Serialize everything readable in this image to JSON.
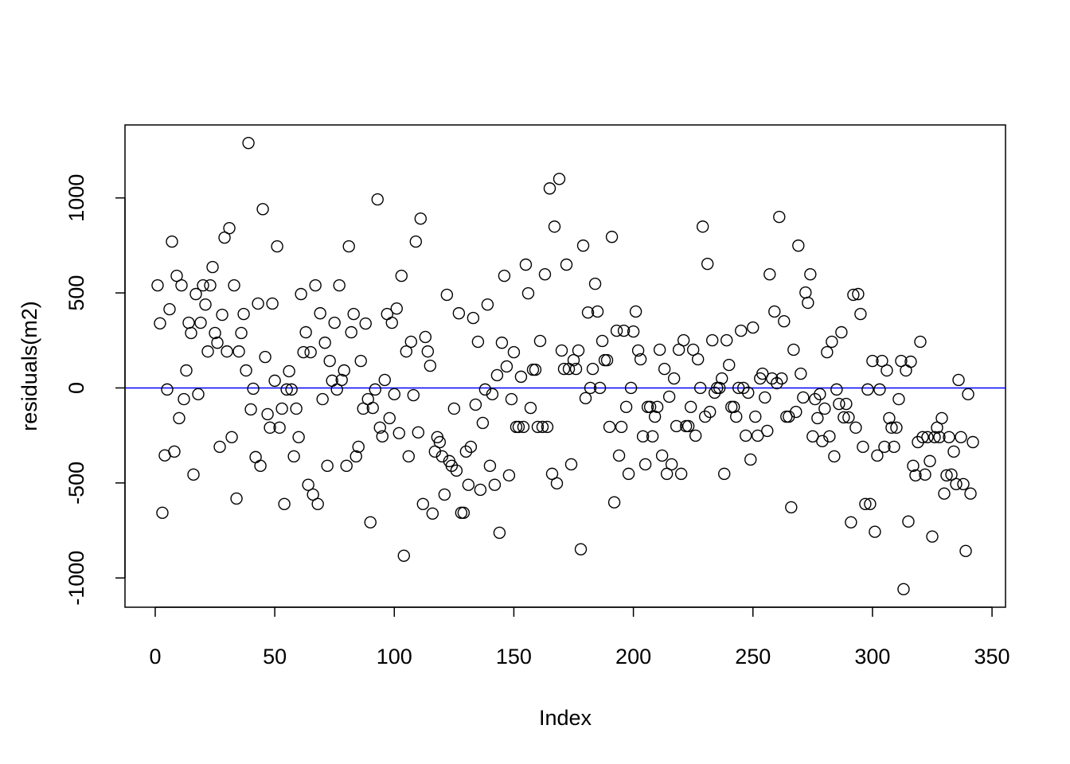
{
  "chart_data": {
    "type": "scatter",
    "xlabel": "Index",
    "ylabel": "residuals(m2)",
    "xlim": [
      -12.64,
      355.64
    ],
    "ylim": [
      -1154,
      1384
    ],
    "xticks": [
      0,
      50,
      100,
      150,
      200,
      250,
      300,
      350
    ],
    "yticks": [
      -1000,
      -500,
      0,
      500,
      1000
    ],
    "hline": {
      "value": 0,
      "color": "#0000ff"
    },
    "series": [
      {
        "color": "#000000",
        "x": [
          1,
          2,
          3,
          4,
          5,
          6,
          7,
          8,
          9,
          10,
          11,
          12,
          13,
          14,
          15,
          16,
          17,
          18,
          19,
          20,
          21,
          22,
          23,
          24,
          25,
          26,
          27,
          28,
          29,
          30,
          31,
          32,
          33,
          34,
          35,
          36,
          37,
          38,
          39,
          40,
          41,
          42,
          43,
          44,
          45,
          46,
          47,
          48,
          49,
          50,
          51,
          52,
          53,
          54,
          55,
          56,
          57,
          58,
          59,
          60,
          61,
          62,
          63,
          64,
          65,
          66,
          67,
          68,
          69,
          70,
          71,
          72,
          73,
          74,
          75,
          76,
          77,
          78,
          79,
          80,
          81,
          82,
          83,
          84,
          85,
          86,
          87,
          88,
          89,
          90,
          91,
          92,
          93,
          94,
          95,
          96,
          97,
          98,
          99,
          100,
          101,
          102,
          103,
          104,
          105,
          106,
          107,
          108,
          109,
          110,
          111,
          112,
          113,
          114,
          115,
          116,
          117,
          118,
          119,
          120,
          121,
          122,
          123,
          124,
          125,
          126,
          127,
          128,
          129,
          130,
          131,
          132,
          133,
          134,
          135,
          136,
          137,
          138,
          139,
          140,
          141,
          142,
          143,
          144,
          145,
          146,
          147,
          148,
          149,
          150,
          151,
          152,
          153,
          154,
          155,
          156,
          157,
          158,
          159,
          160,
          161,
          162,
          163,
          164,
          165,
          166,
          167,
          168,
          169,
          170,
          171,
          172,
          173,
          174,
          175,
          176,
          177,
          178,
          179,
          180,
          181,
          182,
          183,
          184,
          185,
          186,
          187,
          188,
          189,
          190,
          191,
          192,
          193,
          194,
          195,
          196,
          197,
          198,
          199,
          200,
          201,
          202,
          203,
          204,
          205,
          206,
          207,
          208,
          209,
          210,
          211,
          212,
          213,
          214,
          215,
          216,
          217,
          218,
          219,
          220,
          221,
          222,
          223,
          224,
          225,
          226,
          227,
          228,
          229,
          230,
          231,
          232,
          233,
          234,
          235,
          236,
          237,
          238,
          239,
          240,
          241,
          242,
          243,
          244,
          245,
          246,
          247,
          248,
          249,
          250,
          251,
          252,
          253,
          254,
          255,
          256,
          257,
          258,
          259,
          260,
          261,
          262,
          263,
          264,
          265,
          266,
          267,
          268,
          269,
          270,
          271,
          272,
          273,
          274,
          275,
          276,
          277,
          278,
          279,
          280,
          281,
          282,
          283,
          284,
          285,
          286,
          287,
          288,
          289,
          290,
          291,
          292,
          293,
          294,
          295,
          296,
          297,
          298,
          299,
          300,
          301,
          302,
          303,
          304,
          305,
          306,
          307,
          308,
          309,
          310,
          311,
          312,
          313,
          314,
          315,
          316,
          317,
          318,
          319,
          320,
          321,
          322,
          323,
          324,
          325,
          326,
          327,
          328,
          329,
          330,
          331,
          332,
          333,
          334,
          335,
          336,
          337,
          338,
          339,
          340,
          341,
          342
        ],
        "values": [
          540,
          340,
          -657,
          -355,
          -8,
          414,
          770,
          -335,
          590,
          -159,
          540,
          -59,
          92,
          343,
          289,
          -456,
          494,
          -33,
          343,
          540,
          439,
          192,
          540,
          636,
          289,
          238,
          -310,
          385,
          791,
          192,
          841,
          -259,
          540,
          -582,
          192,
          289,
          389,
          92,
          1289,
          -113,
          -4,
          -364,
          444,
          -410,
          941,
          163,
          -138,
          -209,
          444,
          38,
          745,
          -209,
          -109,
          -611,
          -8,
          88,
          -8,
          -360,
          -109,
          -259,
          494,
          188,
          293,
          -510,
          188,
          -561,
          540,
          -611,
          393,
          -59,
          238,
          -410,
          142,
          38,
          343,
          -8,
          540,
          42,
          92,
          -410,
          745,
          293,
          389,
          -360,
          -310,
          142,
          -109,
          339,
          -59,
          -707,
          -105,
          -8,
          992,
          -209,
          -255,
          42,
          389,
          -159,
          343,
          -33,
          418,
          -238,
          590,
          -883,
          192,
          -360,
          243,
          -38,
          770,
          -234,
          891,
          -611,
          268,
          192,
          117,
          -661,
          -335,
          -259,
          -285,
          -360,
          -561,
          490,
          -385,
          -410,
          -109,
          -435,
          393,
          -657,
          -657,
          -335,
          -510,
          -310,
          368,
          -88,
          243,
          -536,
          -184,
          -8,
          439,
          -410,
          -33,
          -510,
          67,
          -762,
          238,
          590,
          113,
          -460,
          -59,
          188,
          -205,
          -205,
          59,
          -205,
          649,
          498,
          -105,
          96,
          96,
          -205,
          247,
          -205,
          598,
          -205,
          1050,
          -452,
          849,
          -502,
          1100,
          197,
          100,
          649,
          100,
          -402,
          146,
          100,
          197,
          -849,
          749,
          -54,
          397,
          0,
          100,
          548,
          402,
          0,
          247,
          146,
          146,
          -205,
          795,
          -602,
          301,
          -356,
          -205,
          301,
          -100,
          -452,
          0,
          297,
          402,
          197,
          151,
          -255,
          -402,
          -100,
          -100,
          -255,
          -151,
          -100,
          201,
          -356,
          100,
          -452,
          -46,
          -402,
          50,
          -201,
          201,
          -452,
          251,
          -201,
          -201,
          -100,
          201,
          -251,
          151,
          0,
          849,
          -151,
          653,
          -126,
          251,
          -25,
          0,
          0,
          50,
          -452,
          251,
          121,
          -100,
          -100,
          -151,
          0,
          301,
          0,
          -251,
          -25,
          -377,
          318,
          -151,
          -251,
          50,
          75,
          -50,
          -226,
          598,
          50,
          402,
          25,
          900,
          50,
          351,
          -151,
          -151,
          -628,
          201,
          -126,
          749,
          75,
          -50,
          502,
          448,
          598,
          -255,
          -59,
          -159,
          -33,
          -280,
          -109,
          188,
          -255,
          243,
          -360,
          -8,
          -84,
          293,
          -155,
          -84,
          -155,
          -707,
          490,
          -209,
          494,
          389,
          -310,
          -611,
          -8,
          -611,
          142,
          -757,
          -356,
          -8,
          142,
          -310,
          92,
          -159,
          -209,
          -310,
          -209,
          -59,
          142,
          -1059,
          92,
          -703,
          138,
          -410,
          -460,
          -285,
          243,
          -259,
          -456,
          -259,
          -385,
          -782,
          -259,
          -209,
          -259,
          -159,
          -556,
          -460,
          -259,
          -456,
          -335,
          -506,
          42,
          -259,
          -506,
          -858,
          -33,
          -556,
          -285
        ]
      }
    ]
  }
}
